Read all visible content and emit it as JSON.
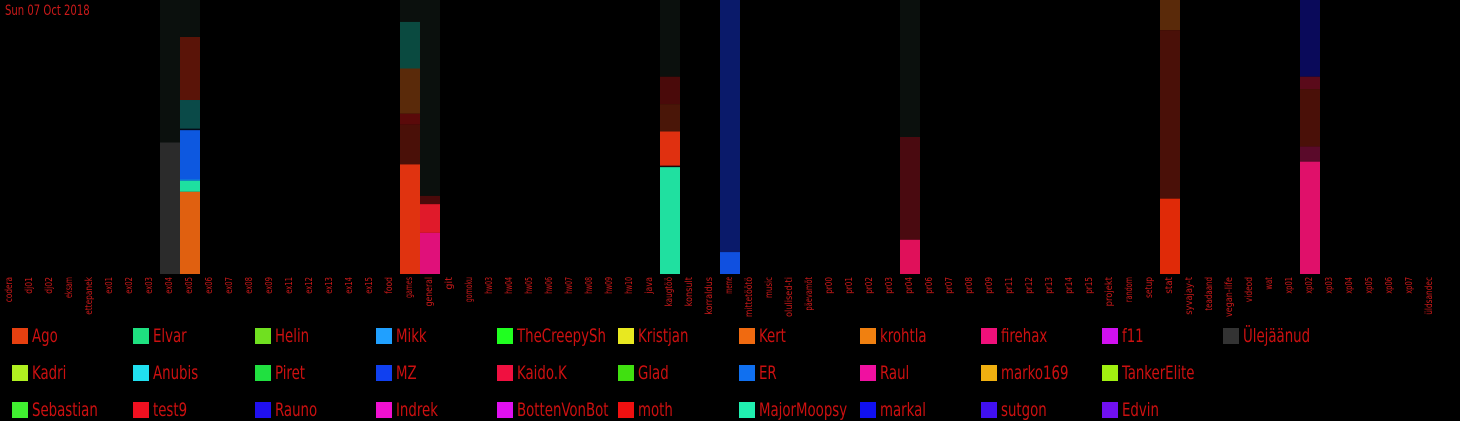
{
  "date": "Sun 07 Oct 2018",
  "chart_data": {
    "type": "bar",
    "stacked": true,
    "background_color": "#000000",
    "label_color": "#cc1a1a",
    "ylim": [
      0,
      1
    ],
    "categories": [
      "codera",
      "dj01",
      "dj02",
      "eksam",
      "ettepanek",
      "ex01",
      "ex02",
      "ex03",
      "ex04",
      "ex05",
      "ex06",
      "ex07",
      "ex08",
      "ex09",
      "ex11",
      "ex12",
      "ex13",
      "ex14",
      "ex15",
      "food",
      "games",
      "general",
      "git",
      "gomoku",
      "hw03",
      "hw04",
      "hw05",
      "hw06",
      "hw07",
      "hw08",
      "hw09",
      "hw10",
      "java",
      "kaugtöö",
      "konsult",
      "korraldus",
      "meme",
      "mittetöötö",
      "music",
      "olulised-ti",
      "päevamõt",
      "pr00",
      "pr01",
      "pr02",
      "pr03",
      "pr04",
      "pr06",
      "pr07",
      "pr08",
      "pr09",
      "pr11",
      "pr12",
      "pr13",
      "pr14",
      "pr15",
      "projekt",
      "random",
      "setup",
      "stat",
      "syvajay-t",
      "teadaand",
      "vegan-life",
      "videod",
      "wat",
      "xp01",
      "xp02",
      "xp03",
      "xp04",
      "xp05",
      "xp06",
      "xp07",
      "üldsandec"
    ],
    "bars": [
      {
        "category": "ex04",
        "segments": [
          {
            "color": "#0b100d",
            "value": 0.52
          },
          {
            "color": "#2b2b2b",
            "value": 0.48
          }
        ]
      },
      {
        "category": "ex05",
        "segments": [
          {
            "color": "#0b100d",
            "value": 0.135
          },
          {
            "color": "#5a1408",
            "value": 0.23
          },
          {
            "color": "#0a4a48",
            "value": 0.105
          },
          {
            "color": "#050a18",
            "value": 0.005
          },
          {
            "color": "#0d58e0",
            "value": 0.18
          },
          {
            "color": "#0d8de0",
            "value": 0.005
          },
          {
            "color": "#1ee0a0",
            "value": 0.04
          },
          {
            "color": "#e06010",
            "value": 0.3
          }
        ]
      },
      {
        "category": "games",
        "segments": [
          {
            "color": "#0b100d",
            "value": 0.08
          },
          {
            "color": "#0a4a40",
            "value": 0.17
          },
          {
            "color": "#5a2a0a",
            "value": 0.165
          },
          {
            "color": "#5a0a0a",
            "value": 0.04
          },
          {
            "color": "#4a1008",
            "value": 0.145
          },
          {
            "color": "#e03310",
            "value": 0.4
          }
        ]
      },
      {
        "category": "general",
        "segments": [
          {
            "color": "#0b100d",
            "value": 0.715
          },
          {
            "color": "#4a0a0a",
            "value": 0.03
          },
          {
            "color": "#e01a2a",
            "value": 0.105
          },
          {
            "color": "#e0107a",
            "value": 0.15
          }
        ]
      },
      {
        "category": "kaugtöö",
        "segments": [
          {
            "color": "#0b100d",
            "value": 0.28
          },
          {
            "color": "#4a0a0a",
            "value": 0.1
          },
          {
            "color": "#4a1608",
            "value": 0.1
          },
          {
            "color": "#e03010",
            "value": 0.125
          },
          {
            "color": "#200808",
            "value": 0.005
          },
          {
            "color": "#20e0a0",
            "value": 0.39
          }
        ]
      },
      {
        "category": "meme",
        "segments": [
          {
            "color": "#0a1a6a",
            "value": 0.92
          },
          {
            "color": "#1050e0",
            "value": 0.08
          }
        ]
      },
      {
        "category": "pr04",
        "segments": [
          {
            "color": "#0b100d",
            "value": 0.5
          },
          {
            "color": "#4a0a10",
            "value": 0.375
          },
          {
            "color": "#e0105a",
            "value": 0.125
          }
        ]
      },
      {
        "category": "stat",
        "segments": [
          {
            "color": "#5a2a0a",
            "value": 0.11
          },
          {
            "color": "#4a1008",
            "value": 0.615
          },
          {
            "color": "#e02a08",
            "value": 0.275
          }
        ]
      },
      {
        "category": "xp02",
        "segments": [
          {
            "color": "#0a0a5a",
            "value": 0.28
          },
          {
            "color": "#5a0a1a",
            "value": 0.045
          },
          {
            "color": "#4a1008",
            "value": 0.21
          },
          {
            "color": "#5a0a2a",
            "value": 0.055
          },
          {
            "color": "#e0106a",
            "value": 0.41
          }
        ]
      }
    ],
    "legend": [
      {
        "name": "Ago",
        "color": "#e64010"
      },
      {
        "name": "Elvar",
        "color": "#1ee080"
      },
      {
        "name": "Helin",
        "color": "#70e020"
      },
      {
        "name": "Mikk",
        "color": "#20a0ff"
      },
      {
        "name": "TheCreepySh",
        "color": "#20ff20"
      },
      {
        "name": "Kristjan",
        "color": "#e8e820"
      },
      {
        "name": "Kert",
        "color": "#f06a10"
      },
      {
        "name": "krohtla",
        "color": "#f08010"
      },
      {
        "name": "firehax",
        "color": "#f0107a"
      },
      {
        "name": "f11",
        "color": "#d010f0"
      },
      {
        "name": "Ülejäänud",
        "color": "#333333"
      },
      {
        "name": "Kadri",
        "color": "#b0f020"
      },
      {
        "name": "Anubis",
        "color": "#20e0f0"
      },
      {
        "name": "Piret",
        "color": "#20e040"
      },
      {
        "name": "MZ",
        "color": "#1040f0"
      },
      {
        "name": "Kaido.K",
        "color": "#f01040"
      },
      {
        "name": "Glad",
        "color": "#40e010"
      },
      {
        "name": "ER",
        "color": "#1070f0"
      },
      {
        "name": "Raul",
        "color": "#f010a0"
      },
      {
        "name": "marko169",
        "color": "#f0b010"
      },
      {
        "name": "TankerElite",
        "color": "#a0f010"
      },
      {
        "name": "Sebastian",
        "color": "#40f030"
      },
      {
        "name": "test9",
        "color": "#f01020"
      },
      {
        "name": "Rauno",
        "color": "#2010f0"
      },
      {
        "name": "Indrek",
        "color": "#f010d0"
      },
      {
        "name": "BottenVonBot",
        "color": "#e010f0"
      },
      {
        "name": "moth",
        "color": "#f01010"
      },
      {
        "name": "MajorMoopsy",
        "color": "#20f0b0"
      },
      {
        "name": "markal",
        "color": "#1010f0"
      },
      {
        "name": "sutgon",
        "color": "#4010f0"
      },
      {
        "name": "Edvin",
        "color": "#7010f0"
      }
    ]
  }
}
